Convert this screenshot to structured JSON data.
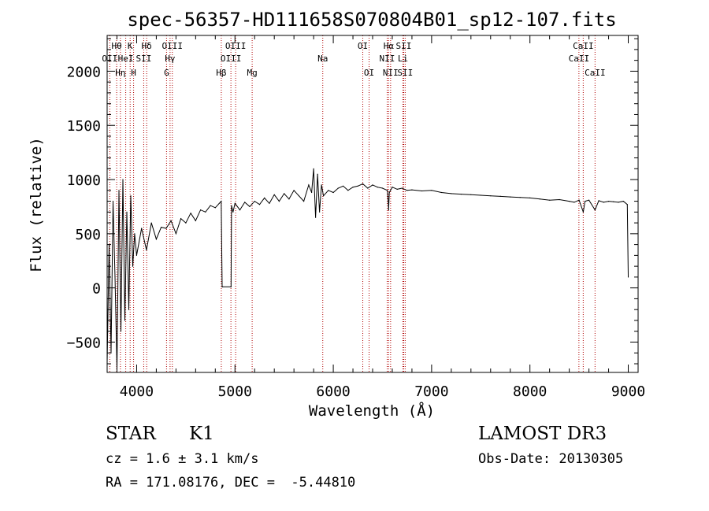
{
  "chart_data": {
    "type": "line",
    "title": "spec-56357-HD111658S070804B01_sp12-107.fits",
    "xlabel": "Wavelength (Å)",
    "ylabel": "Flux (relative)",
    "xlim": [
      3700,
      9100
    ],
    "ylim": [
      -780,
      2330
    ],
    "xticks": [
      4000,
      5000,
      6000,
      7000,
      8000,
      9000
    ],
    "yticks": [
      -500,
      0,
      500,
      1000,
      1500,
      2000
    ],
    "grid": false,
    "series": [
      {
        "name": "flux",
        "x": [
          3700,
          3720,
          3740,
          3760,
          3780,
          3800,
          3820,
          3840,
          3860,
          3880,
          3900,
          3920,
          3940,
          3960,
          3980,
          4000,
          4050,
          4100,
          4150,
          4200,
          4250,
          4300,
          4350,
          4400,
          4450,
          4500,
          4550,
          4600,
          4650,
          4700,
          4750,
          4800,
          4840,
          4860,
          4870,
          4875,
          4960,
          4965,
          4980,
          5000,
          5050,
          5100,
          5150,
          5200,
          5250,
          5300,
          5350,
          5400,
          5450,
          5500,
          5550,
          5600,
          5650,
          5700,
          5750,
          5780,
          5800,
          5820,
          5840,
          5860,
          5880,
          5900,
          5950,
          6000,
          6050,
          6100,
          6150,
          6200,
          6250,
          6300,
          6350,
          6400,
          6450,
          6500,
          6550,
          6560,
          6563,
          6570,
          6600,
          6650,
          6700,
          6750,
          6800,
          6900,
          7000,
          7100,
          7200,
          7300,
          7400,
          7500,
          7600,
          7700,
          7800,
          7900,
          8000,
          8100,
          8200,
          8300,
          8400,
          8450,
          8500,
          8542,
          8560,
          8600,
          8662,
          8700,
          8750,
          8800,
          8850,
          8900,
          8950,
          8990,
          9000
        ],
        "values": [
          -700,
          400,
          -600,
          800,
          100,
          -750,
          900,
          -400,
          1000,
          -300,
          700,
          -200,
          850,
          200,
          500,
          300,
          550,
          350,
          600,
          450,
          560,
          550,
          620,
          500,
          640,
          600,
          690,
          620,
          720,
          700,
          760,
          740,
          780,
          800,
          10,
          10,
          10,
          760,
          700,
          780,
          720,
          790,
          750,
          800,
          770,
          830,
          780,
          860,
          800,
          870,
          820,
          900,
          850,
          800,
          950,
          880,
          1100,
          650,
          1050,
          700,
          950,
          850,
          900,
          880,
          920,
          940,
          900,
          930,
          940,
          960,
          920,
          950,
          930,
          920,
          900,
          780,
          720,
          880,
          930,
          910,
          920,
          900,
          905,
          895,
          900,
          880,
          870,
          865,
          860,
          855,
          850,
          845,
          840,
          835,
          830,
          820,
          810,
          815,
          800,
          790,
          810,
          700,
          800,
          810,
          720,
          805,
          790,
          800,
          795,
          790,
          800,
          770,
          100
        ]
      }
    ],
    "lines": [
      {
        "name": "Hθ",
        "x": 3797,
        "row": 1
      },
      {
        "name": "OII",
        "x": 3727,
        "row": 2
      },
      {
        "name": "Hη",
        "x": 3835,
        "row": 3
      },
      {
        "name": "HeI",
        "x": 3889,
        "row": 2
      },
      {
        "name": "K",
        "x": 3934,
        "row": 1
      },
      {
        "name": "H",
        "x": 3969,
        "row": 3
      },
      {
        "name": "SII",
        "x": 4072,
        "row": 2
      },
      {
        "name": "Hδ",
        "x": 4102,
        "row": 1
      },
      {
        "name": "OIII",
        "x": 4363,
        "row": 1
      },
      {
        "name": "Hγ",
        "x": 4340,
        "row": 2
      },
      {
        "name": "G",
        "x": 4304,
        "row": 3
      },
      {
        "name": "Hβ",
        "x": 4861,
        "row": 3
      },
      {
        "name": "OIII",
        "x": 5007,
        "row": 1
      },
      {
        "name": "OIII",
        "x": 4959,
        "row": 2
      },
      {
        "name": "Mg",
        "x": 5175,
        "row": 3
      },
      {
        "name": "Na",
        "x": 5893,
        "row": 2
      },
      {
        "name": "OI",
        "x": 6300,
        "row": 1
      },
      {
        "name": "OI",
        "x": 6364,
        "row": 3
      },
      {
        "name": "Hα",
        "x": 6563,
        "row": 1
      },
      {
        "name": "NII",
        "x": 6548,
        "row": 2
      },
      {
        "name": "NII",
        "x": 6583,
        "row": 3
      },
      {
        "name": "SII",
        "x": 6716,
        "row": 1
      },
      {
        "name": "Li",
        "x": 6708,
        "row": 2
      },
      {
        "name": "SII",
        "x": 6731,
        "row": 3
      },
      {
        "name": "CaII",
        "x": 8542,
        "row": 1
      },
      {
        "name": "CaII",
        "x": 8498,
        "row": 2
      },
      {
        "name": "CaII",
        "x": 8662,
        "row": 3
      }
    ]
  },
  "info": {
    "class_label": "STAR",
    "subclass": "K1",
    "survey": "LAMOST DR3",
    "cz": "cz = 1.6 ± 3.1 km/s",
    "obs_date": "Obs-Date: 20130305",
    "coords": "RA = 171.08176, DEC =  -5.44810"
  },
  "colors": {
    "line_marker": "#b00000",
    "spectrum": "#000000",
    "axes": "#000000"
  }
}
